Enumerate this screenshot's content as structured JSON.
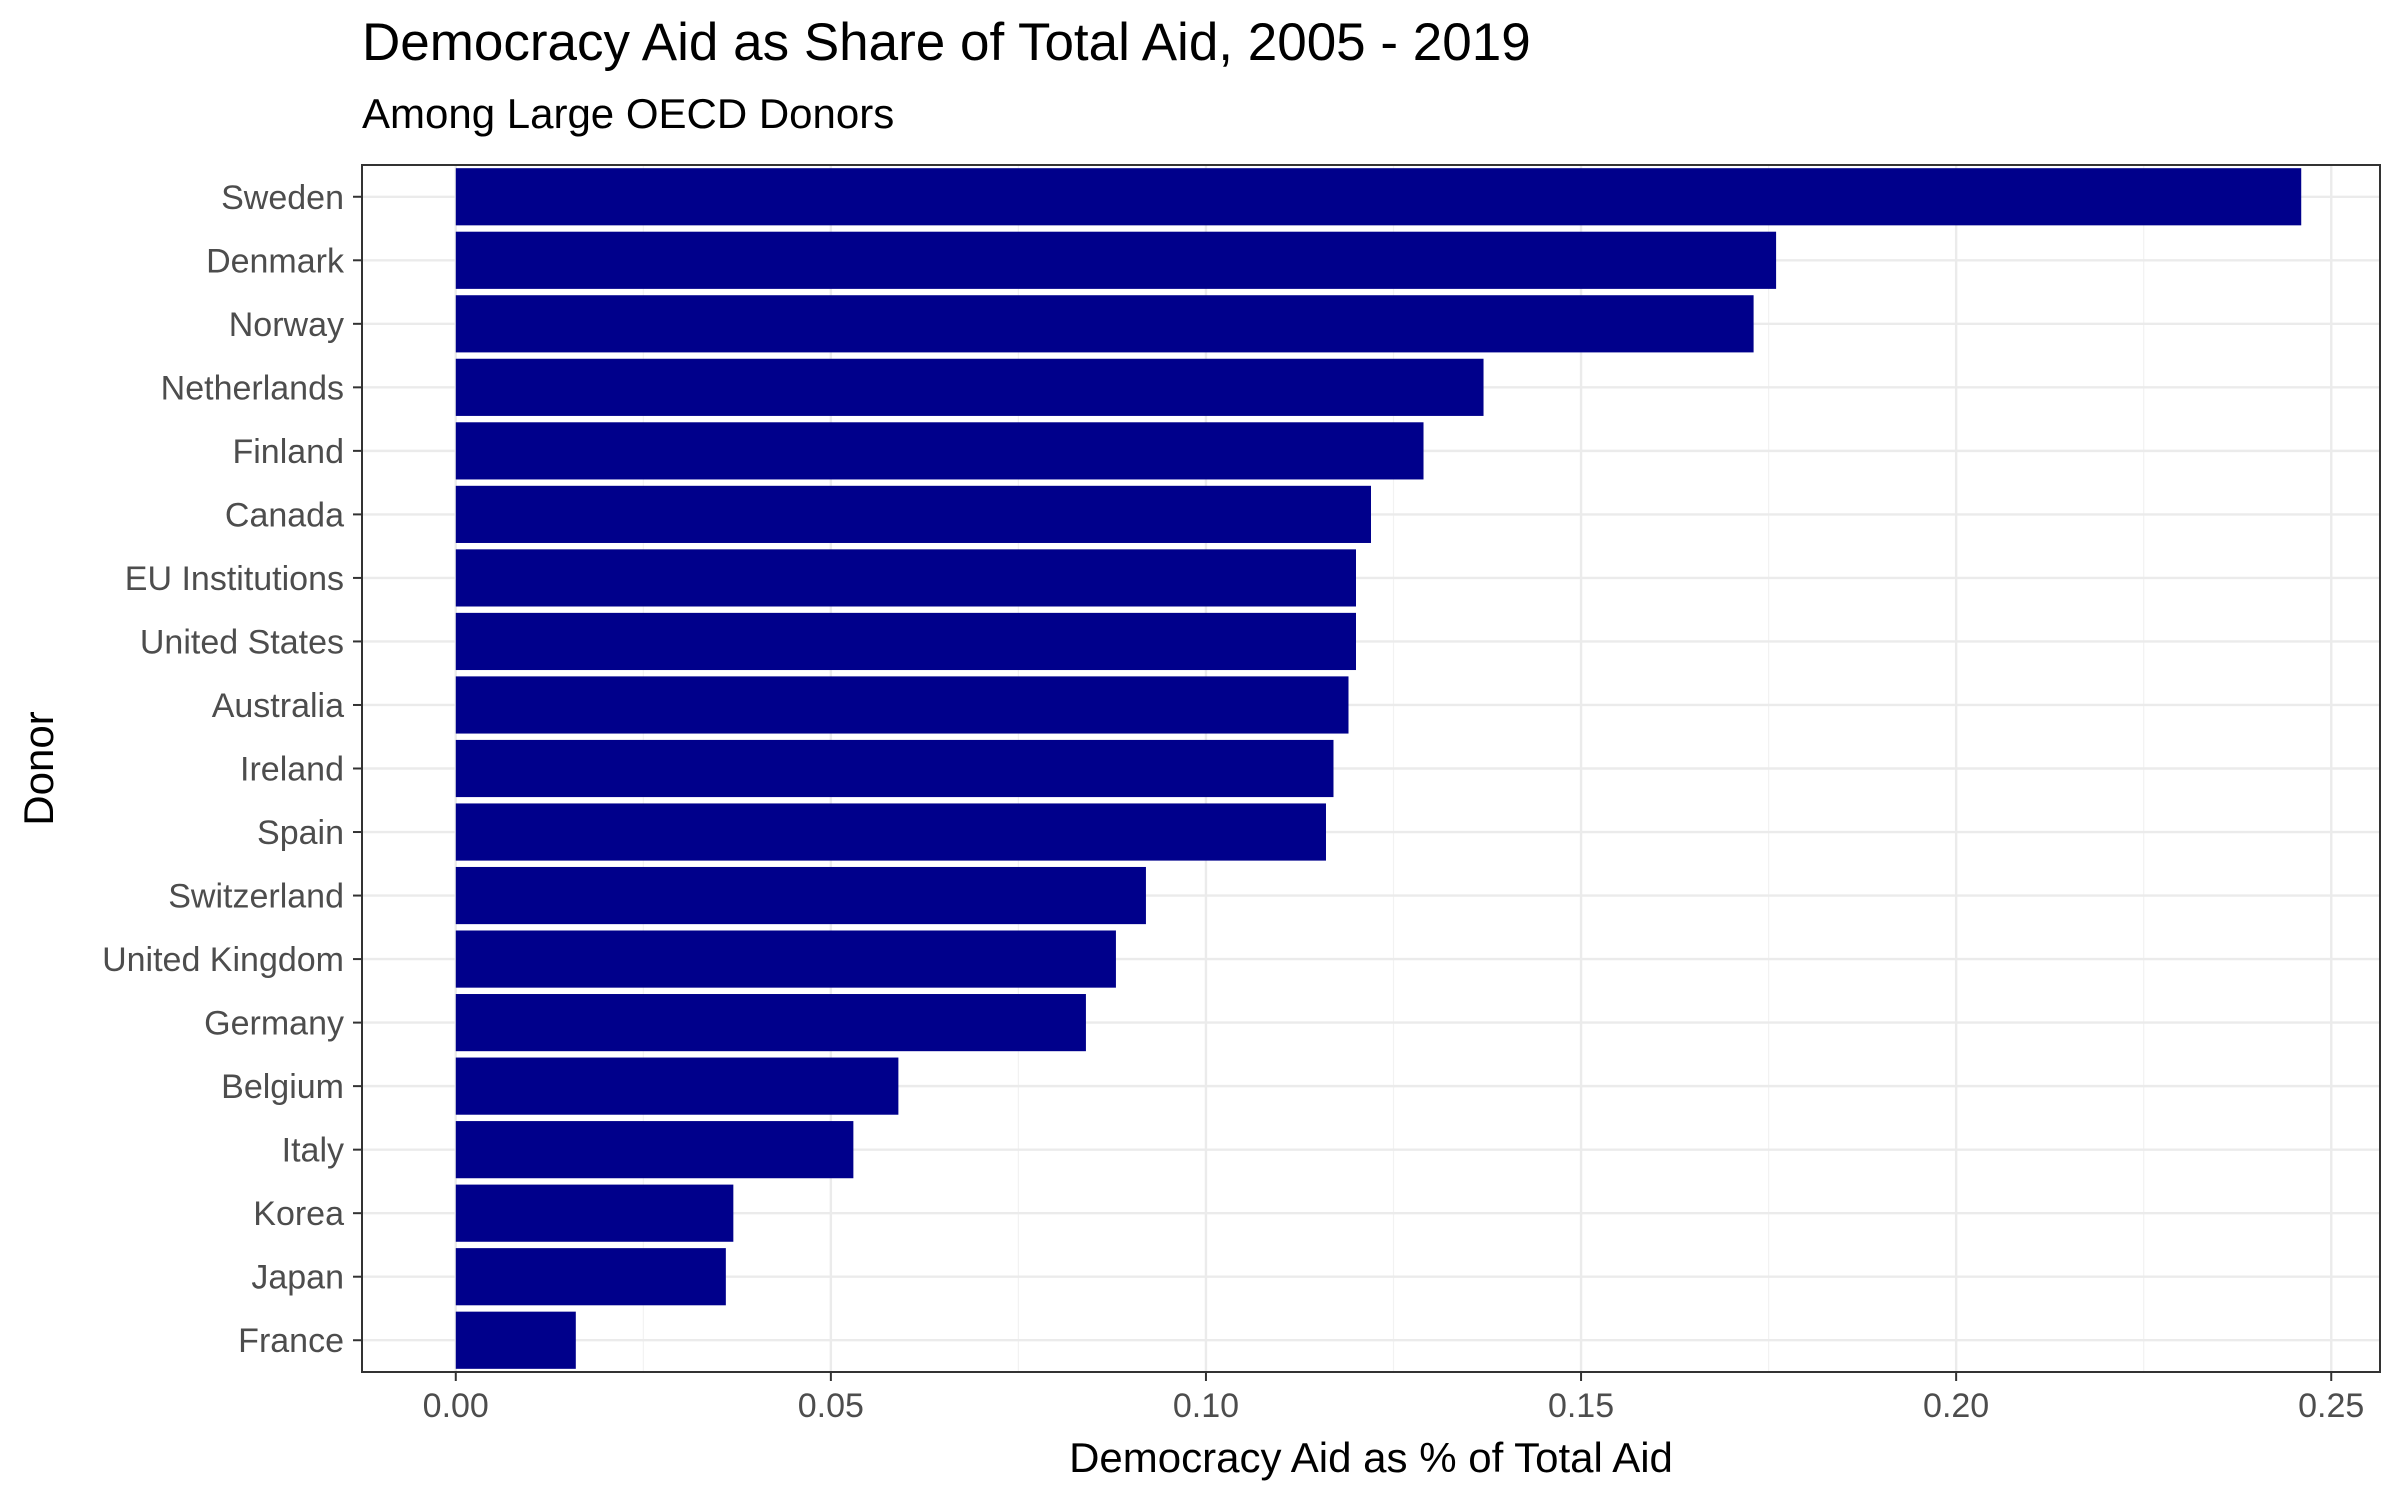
{
  "chart_data": {
    "type": "bar",
    "orientation": "horizontal",
    "title": "Democracy Aid as Share of Total Aid, 2005 - 2019",
    "subtitle": "Among Large OECD Donors",
    "xlabel": "Democracy Aid as % of Total Aid",
    "ylabel": "Donor",
    "xlim": [
      -0.0125,
      0.2565
    ],
    "x_ticks": [
      "0.00",
      "0.05",
      "0.10",
      "0.15",
      "0.20",
      "0.25"
    ],
    "x_tick_values": [
      0,
      0.05,
      0.1,
      0.15,
      0.2,
      0.25
    ],
    "grid": true,
    "bar_color": "#00008b",
    "categories": [
      "Sweden",
      "Denmark",
      "Norway",
      "Netherlands",
      "Finland",
      "Canada",
      "EU Institutions",
      "United States",
      "Australia",
      "Ireland",
      "Spain",
      "Switzerland",
      "United Kingdom",
      "Germany",
      "Belgium",
      "Italy",
      "Korea",
      "Japan",
      "France"
    ],
    "values": [
      0.246,
      0.176,
      0.173,
      0.137,
      0.129,
      0.122,
      0.12,
      0.12,
      0.119,
      0.117,
      0.116,
      0.092,
      0.088,
      0.084,
      0.059,
      0.053,
      0.037,
      0.036,
      0.016
    ]
  }
}
